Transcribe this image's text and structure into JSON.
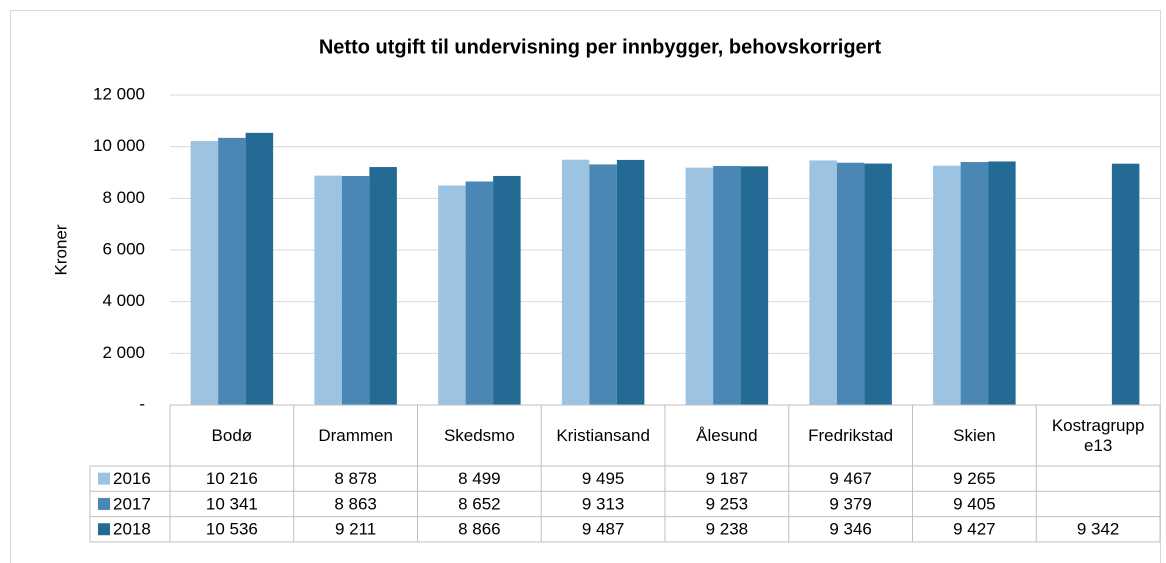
{
  "chart_data": {
    "type": "bar",
    "title": "Netto utgift til undervisning per innbygger, behovskorrigert",
    "y_label": "Kroner",
    "categories": [
      "Bodø",
      "Drammen",
      "Skedsmo",
      "Kristiansand",
      "Ålesund",
      "Fredrikstad",
      "Skien",
      "Kostragruppe13"
    ],
    "series": [
      {
        "name": "2016",
        "color": "#9dc3e3",
        "values": [
          10216,
          8878,
          8499,
          9495,
          9187,
          9467,
          9265,
          null
        ],
        "value_labels": [
          "10 216",
          "8 878",
          "8 499",
          "9 495",
          "9 187",
          "9 467",
          "9 265",
          null
        ]
      },
      {
        "name": "2017",
        "color": "#4a87b5",
        "values": [
          10341,
          8863,
          8652,
          9313,
          9253,
          9379,
          9405,
          null
        ],
        "value_labels": [
          "10 341",
          "8 863",
          "8 652",
          "9 313",
          "9 253",
          "9 379",
          "9 405",
          null
        ]
      },
      {
        "name": "2018",
        "color": "#236a95",
        "values": [
          10536,
          9211,
          8866,
          9487,
          9238,
          9346,
          9427,
          9342
        ],
        "value_labels": [
          "10 536",
          "9 211",
          "8 866",
          "9 487",
          "9 238",
          "9 346",
          "9 427",
          "9 342"
        ]
      }
    ],
    "ylim": [
      0,
      12000
    ],
    "yticks": [
      {
        "value": 0,
        "label": "-"
      },
      {
        "value": 2000,
        "label": "2 000"
      },
      {
        "value": 4000,
        "label": "4 000"
      },
      {
        "value": 6000,
        "label": "6 000"
      },
      {
        "value": 8000,
        "label": "8 000"
      },
      {
        "value": 10000,
        "label": "10 000"
      },
      {
        "value": 12000,
        "label": "12 000"
      }
    ],
    "grid": true
  }
}
